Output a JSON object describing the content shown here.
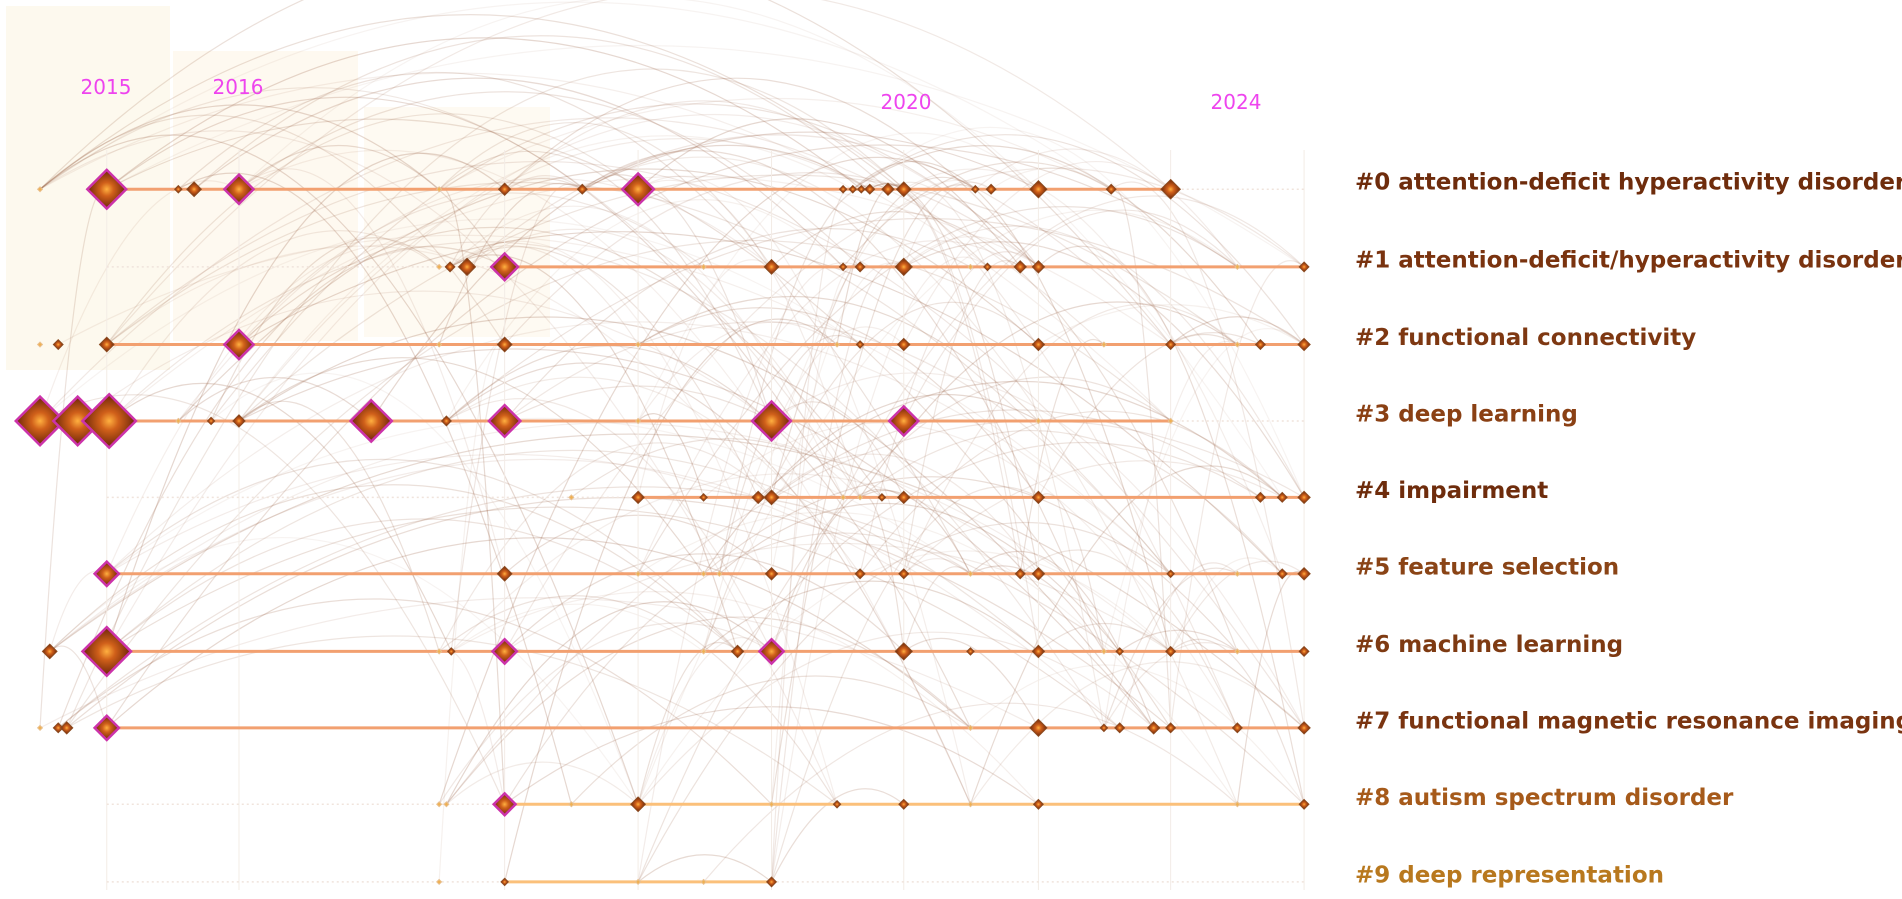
{
  "years": [
    "2015",
    "2016",
    "2020",
    "2024"
  ],
  "clusters": [
    "#0 attention-deficit hyperactivity disorder",
    "#1 attention-deficit/hyperactivity disorder",
    "#2 functional connectivity",
    "#3 deep learning",
    "#4 impairment",
    "#5 feature selection",
    "#6 machine learning",
    "#7 functional magnetic resonance imaging",
    "#8 autism spectrum disorder",
    "#9 deep representation"
  ]
}
